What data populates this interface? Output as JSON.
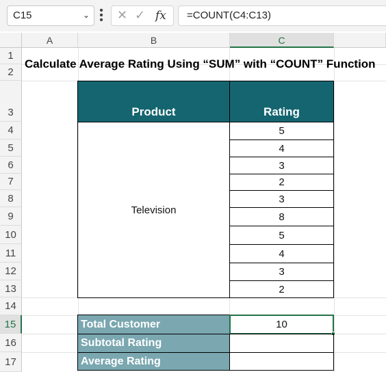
{
  "formula_bar": {
    "name_box": "C15",
    "name_box_icon": "chevron-down-icon",
    "cancel_icon": "close-icon",
    "enter_icon": "check-icon",
    "fx_label": "fx",
    "formula": "=COUNT(C4:C13)"
  },
  "columns": [
    "A",
    "B",
    "C"
  ],
  "rows": [
    "1",
    "2",
    "3",
    "4",
    "5",
    "6",
    "7",
    "8",
    "9",
    "10",
    "11",
    "12",
    "13",
    "14",
    "15",
    "16",
    "17"
  ],
  "sheet": {
    "title": "Calculate Average Rating Using “SUM” with “COUNT” Function",
    "header_product": "Product",
    "header_rating": "Rating",
    "product": "Television",
    "ratings": [
      "5",
      "4",
      "3",
      "2",
      "3",
      "8",
      "5",
      "4",
      "3",
      "2"
    ],
    "total_customer_label": "Total Customer",
    "total_customer_value": "10",
    "subtotal_label": "Subtotal Rating",
    "subtotal_value": "",
    "average_label": "Average Rating",
    "average_value": ""
  },
  "colors": {
    "header_fill": "#156570",
    "label_fill": "#7aa7b0",
    "selection": "#217346"
  }
}
